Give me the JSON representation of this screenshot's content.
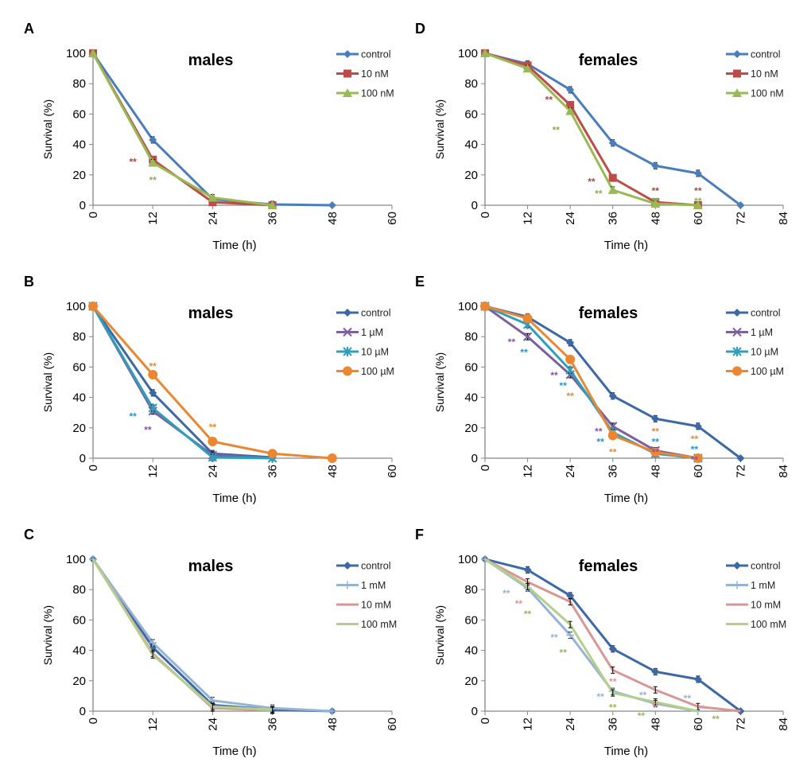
{
  "chart_data": [
    {
      "panel": "A",
      "type": "line",
      "title": "males",
      "xlabel": "Time (h)",
      "ylabel": "Survival (%)",
      "xlim": [
        0,
        60
      ],
      "xticks": [
        0,
        12,
        24,
        36,
        48,
        60
      ],
      "ylim": [
        0,
        100
      ],
      "yticks": [
        0,
        20,
        40,
        60,
        80,
        100
      ],
      "series": [
        {
          "name": "control",
          "color": "#4a7ebb",
          "marker": "diamond",
          "x": [
            0,
            12,
            24,
            36,
            48
          ],
          "y": [
            100,
            43,
            4,
            0.5,
            0
          ]
        },
        {
          "name": "10 nM",
          "color": "#be4b48",
          "marker": "square",
          "x": [
            0,
            12,
            24,
            36
          ],
          "y": [
            100,
            30,
            2,
            0
          ]
        },
        {
          "name": "100 nM",
          "color": "#98b954",
          "marker": "triangle",
          "x": [
            0,
            12,
            24,
            36
          ],
          "y": [
            100,
            28,
            5,
            0
          ]
        }
      ],
      "annotations": [
        {
          "text": "**",
          "x": 8,
          "y": 29,
          "color": "#a94744"
        },
        {
          "text": "**",
          "x": 12,
          "y": 17,
          "color": "#8eae58"
        }
      ]
    },
    {
      "panel": "D",
      "type": "line",
      "title": "females",
      "xlabel": "Time (h)",
      "ylabel": "Survival (%)",
      "xlim": [
        0,
        84
      ],
      "xticks": [
        0,
        12,
        24,
        36,
        48,
        60,
        72,
        84
      ],
      "ylim": [
        0,
        100
      ],
      "yticks": [
        0,
        20,
        40,
        60,
        80,
        100
      ],
      "series": [
        {
          "name": "control",
          "color": "#4a7ebb",
          "marker": "diamond",
          "x": [
            0,
            12,
            24,
            36,
            48,
            60,
            72
          ],
          "y": [
            100,
            93,
            76,
            41,
            26,
            21,
            0
          ]
        },
        {
          "name": "10 nM",
          "color": "#be4b48",
          "marker": "square",
          "x": [
            0,
            12,
            24,
            36,
            48,
            60
          ],
          "y": [
            100,
            92,
            66,
            18,
            2,
            0
          ]
        },
        {
          "name": "100 nM",
          "color": "#98b954",
          "marker": "triangle",
          "x": [
            0,
            12,
            24,
            36,
            48,
            60
          ],
          "y": [
            100,
            90,
            62,
            10,
            1,
            0
          ]
        }
      ],
      "annotations": [
        {
          "text": "**",
          "x": 18,
          "y": 70,
          "color": "#a94744"
        },
        {
          "text": "**",
          "x": 20,
          "y": 50,
          "color": "#8eae58"
        },
        {
          "text": "**",
          "x": 30,
          "y": 16,
          "color": "#a94744"
        },
        {
          "text": "**",
          "x": 32,
          "y": 8,
          "color": "#8eae58"
        },
        {
          "text": "**",
          "x": 48,
          "y": 10,
          "color": "#a94744"
        },
        {
          "text": "**",
          "x": 48,
          "y": 4,
          "color": "#8eae58"
        },
        {
          "text": "**",
          "x": 60,
          "y": 10,
          "color": "#a94744"
        },
        {
          "text": "**",
          "x": 60,
          "y": 4,
          "color": "#8eae58"
        }
      ]
    },
    {
      "panel": "B",
      "type": "line",
      "title": "males",
      "xlabel": "Time (h)",
      "ylabel": "Survival (%)",
      "xlim": [
        0,
        60
      ],
      "xticks": [
        0,
        12,
        24,
        36,
        48,
        60
      ],
      "ylim": [
        0,
        100
      ],
      "yticks": [
        0,
        20,
        40,
        60,
        80,
        100
      ],
      "series": [
        {
          "name": "control",
          "color": "#3c68a6",
          "marker": "diamond",
          "x": [
            0,
            12,
            24,
            36
          ],
          "y": [
            100,
            43,
            3,
            0.5
          ]
        },
        {
          "name": "1 µM",
          "color": "#7d5fa0",
          "marker": "x",
          "x": [
            0,
            12,
            24,
            36
          ],
          "y": [
            100,
            31,
            2,
            0
          ]
        },
        {
          "name": "10 µM",
          "color": "#2e9fbb",
          "marker": "star",
          "x": [
            0,
            12,
            24,
            36
          ],
          "y": [
            100,
            33,
            0.5,
            0
          ]
        },
        {
          "name": "100 µM",
          "color": "#ec8731",
          "marker": "circle",
          "x": [
            0,
            12,
            24,
            36,
            48
          ],
          "y": [
            100,
            55,
            11,
            3,
            0
          ]
        }
      ],
      "annotations": [
        {
          "text": "**",
          "x": 12,
          "y": 61,
          "color": "#ec8731"
        },
        {
          "text": "**",
          "x": 8,
          "y": 28,
          "color": "#2e8fd0"
        },
        {
          "text": "**",
          "x": 11,
          "y": 19,
          "color": "#8a4fb8"
        },
        {
          "text": "**",
          "x": 24,
          "y": 21,
          "color": "#ec8731"
        }
      ]
    },
    {
      "panel": "E",
      "type": "line",
      "title": "females",
      "xlabel": "Time (h)",
      "ylabel": "Survival (%)",
      "xlim": [
        0,
        84
      ],
      "xticks": [
        0,
        12,
        24,
        36,
        48,
        60,
        72,
        84
      ],
      "ylim": [
        0,
        100
      ],
      "yticks": [
        0,
        20,
        40,
        60,
        80,
        100
      ],
      "series": [
        {
          "name": "control",
          "color": "#3c68a6",
          "marker": "diamond",
          "x": [
            0,
            12,
            24,
            36,
            48,
            60,
            72
          ],
          "y": [
            100,
            93,
            76,
            41,
            26,
            21,
            0
          ]
        },
        {
          "name": "1 µM",
          "color": "#7d5fa0",
          "marker": "x",
          "x": [
            0,
            12,
            24,
            36,
            48,
            60
          ],
          "y": [
            100,
            80,
            55,
            21,
            5,
            0
          ]
        },
        {
          "name": "10 µM",
          "color": "#2e9fbb",
          "marker": "star",
          "x": [
            0,
            12,
            24,
            36,
            48,
            60
          ],
          "y": [
            100,
            88,
            58,
            17,
            3,
            0
          ]
        },
        {
          "name": "100 µM",
          "color": "#ec8731",
          "marker": "circle",
          "x": [
            0,
            12,
            24,
            36,
            48,
            60
          ],
          "y": [
            100,
            92,
            65,
            15,
            4,
            0
          ]
        }
      ],
      "annotations": [
        {
          "text": "**",
          "x": 7.5,
          "y": 77,
          "color": "#8a4fb8"
        },
        {
          "text": "**",
          "x": 11,
          "y": 71,
          "color": "#2e8fd0"
        },
        {
          "text": "**",
          "x": 19.5,
          "y": 55,
          "color": "#8a4fb8"
        },
        {
          "text": "**",
          "x": 22,
          "y": 49,
          "color": "#2e8fd0"
        },
        {
          "text": "**",
          "x": 24,
          "y": 44,
          "color": "#ec8731"
        },
        {
          "text": "**",
          "x": 32,
          "y": 18,
          "color": "#8a4fb8"
        },
        {
          "text": "**",
          "x": 32.5,
          "y": 12,
          "color": "#2e8fd0"
        },
        {
          "text": "**",
          "x": 36,
          "y": 7,
          "color": "#ec8731"
        },
        {
          "text": "**",
          "x": 48,
          "y": 18,
          "color": "#ec8731"
        },
        {
          "text": "**",
          "x": 48,
          "y": 13,
          "color": "#2e8fd0"
        },
        {
          "text": "**",
          "x": 48,
          "y": 8,
          "color": "#8a4fb8"
        },
        {
          "text": "**",
          "x": 59,
          "y": 13,
          "color": "#ec8731"
        },
        {
          "text": "**",
          "x": 59,
          "y": 7,
          "color": "#2e8fd0"
        },
        {
          "text": "**",
          "x": 59,
          "y": 2,
          "color": "#8a4fb8"
        }
      ]
    },
    {
      "panel": "C",
      "type": "line",
      "title": "males",
      "xlabel": "Time (h)",
      "ylabel": "Survival (%)",
      "xlim": [
        0,
        60
      ],
      "xticks": [
        0,
        12,
        24,
        36,
        48,
        60
      ],
      "ylim": [
        0,
        100
      ],
      "yticks": [
        0,
        20,
        40,
        60,
        80,
        100
      ],
      "series": [
        {
          "name": "control",
          "color": "#3c68a6",
          "marker": "diamond",
          "x": [
            0,
            12,
            24,
            36,
            48
          ],
          "y": [
            100,
            42,
            4,
            1,
            0
          ]
        },
        {
          "name": "1 mM",
          "color": "#95b3d7",
          "marker": "plus",
          "x": [
            0,
            12,
            24,
            36,
            48
          ],
          "y": [
            100,
            45,
            7,
            2,
            0
          ]
        },
        {
          "name": "10 mM",
          "color": "#d99694",
          "marker": "none",
          "x": [
            0,
            12,
            24,
            36
          ],
          "y": [
            100,
            38,
            2,
            0.5
          ]
        },
        {
          "name": "100 mM",
          "color": "#b3cf8a",
          "marker": "none",
          "x": [
            0,
            12,
            24,
            36
          ],
          "y": [
            100,
            37,
            3,
            1
          ]
        }
      ],
      "annotations": []
    },
    {
      "panel": "F",
      "type": "line",
      "title": "females",
      "xlabel": "Time (h)",
      "ylabel": "Survival (%)",
      "xlim": [
        0,
        84
      ],
      "xticks": [
        0,
        12,
        24,
        36,
        48,
        60,
        72,
        84
      ],
      "ylim": [
        0,
        100
      ],
      "yticks": [
        0,
        20,
        40,
        60,
        80,
        100
      ],
      "series": [
        {
          "name": "control",
          "color": "#3c68a6",
          "marker": "diamond",
          "x": [
            0,
            12,
            24,
            36,
            48,
            60,
            72
          ],
          "y": [
            100,
            93,
            76,
            41,
            26,
            21,
            0
          ]
        },
        {
          "name": "1 mM",
          "color": "#95b3d7",
          "marker": "plus",
          "x": [
            0,
            12,
            24,
            36,
            48,
            60
          ],
          "y": [
            100,
            81,
            50,
            13,
            5,
            0
          ]
        },
        {
          "name": "10 mM",
          "color": "#d99694",
          "marker": "none",
          "x": [
            0,
            12,
            24,
            36,
            48,
            60,
            72
          ],
          "y": [
            100,
            85,
            72,
            27,
            14,
            3,
            0
          ]
        },
        {
          "name": "100 mM",
          "color": "#b3cf8a",
          "marker": "none",
          "x": [
            0,
            12,
            24,
            36,
            48,
            60
          ],
          "y": [
            100,
            82,
            57,
            12,
            6,
            0
          ]
        }
      ],
      "annotations": [
        {
          "text": "**",
          "x": 6,
          "y": 78,
          "color": "#95b3d7"
        },
        {
          "text": "**",
          "x": 9.5,
          "y": 74,
          "color": "#d99694"
        },
        {
          "text": "**",
          "x": 12,
          "y": 68,
          "color": "#98b954"
        },
        {
          "text": "**",
          "x": 19.5,
          "y": 49,
          "color": "#95b3d7"
        },
        {
          "text": "**",
          "x": 22,
          "y": 39,
          "color": "#98b954"
        },
        {
          "text": "**",
          "x": 36,
          "y": 20,
          "color": "#d99694"
        },
        {
          "text": "**",
          "x": 32.5,
          "y": 10,
          "color": "#95b3d7"
        },
        {
          "text": "**",
          "x": 36,
          "y": 3,
          "color": "#98b954"
        },
        {
          "text": "**",
          "x": 44.5,
          "y": 11,
          "color": "#95b3d7"
        },
        {
          "text": "**",
          "x": 48,
          "y": 8,
          "color": "#d99694"
        },
        {
          "text": "**",
          "x": 44,
          "y": 1.5,
          "color": "#98b954"
        },
        {
          "text": "**",
          "x": 57,
          "y": 9,
          "color": "#95b3d7"
        },
        {
          "text": "**",
          "x": 61,
          "y": 7,
          "color": "#d99694"
        },
        {
          "text": "**",
          "x": 65,
          "y": 3,
          "color": "#98b954"
        }
      ]
    }
  ]
}
